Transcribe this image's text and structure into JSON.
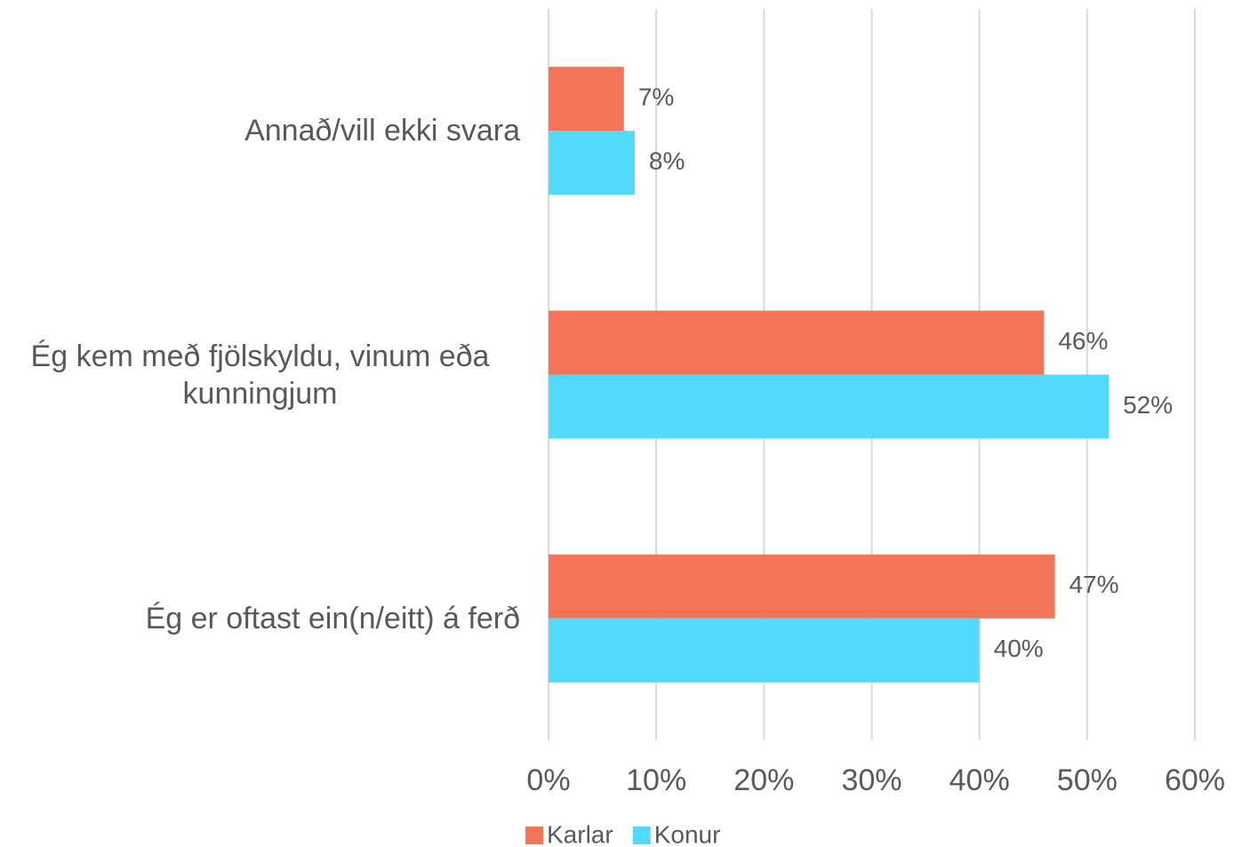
{
  "chart_data": {
    "type": "bar",
    "orientation": "horizontal",
    "categories": [
      "Annað/vill ekki svara",
      "Ég kem með fjölskyldu, vinum eða kunningjum",
      "Ég er oftast ein(n/eitt) á ferð"
    ],
    "series": [
      {
        "name": "Karlar",
        "color": "#f47458",
        "values": [
          7,
          46,
          47
        ],
        "value_labels": [
          "7%",
          "46%",
          "47%"
        ]
      },
      {
        "name": "Konur",
        "color": "#52d9fc",
        "values": [
          8,
          52,
          40
        ],
        "value_labels": [
          "8%",
          "52%",
          "40%"
        ]
      }
    ],
    "xlim": [
      0,
      60
    ],
    "xticks": [
      {
        "value": 0,
        "label": "0%"
      },
      {
        "value": 10,
        "label": "10%"
      },
      {
        "value": 20,
        "label": "20%"
      },
      {
        "value": 30,
        "label": "30%"
      },
      {
        "value": 40,
        "label": "40%"
      },
      {
        "value": 50,
        "label": "50%"
      },
      {
        "value": 60,
        "label": "60%"
      }
    ],
    "grid": true,
    "legend": "bottom"
  }
}
